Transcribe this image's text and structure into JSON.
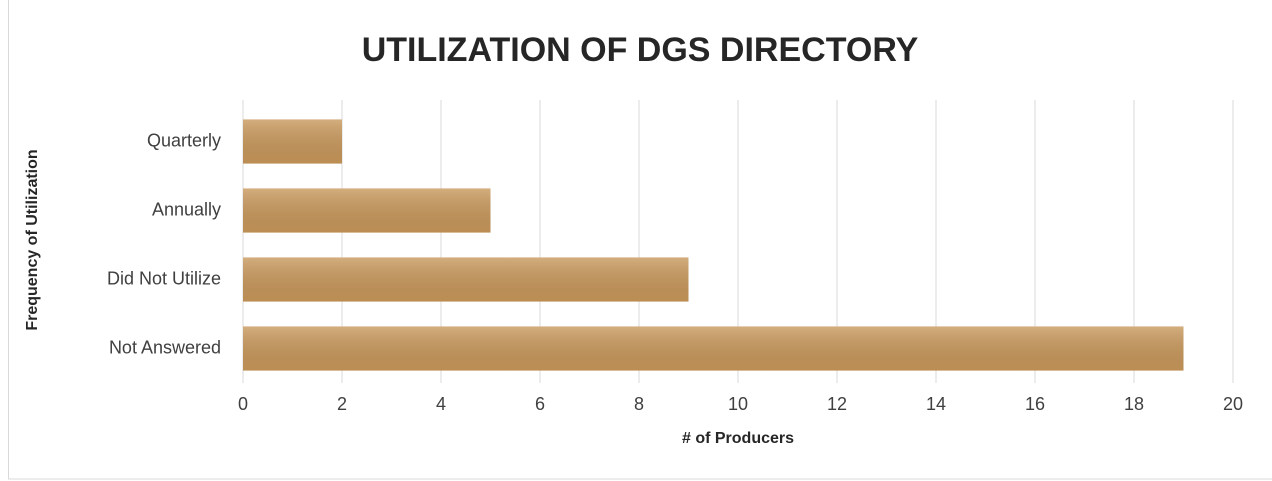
{
  "chart_data": {
    "type": "bar",
    "orientation": "horizontal",
    "title": "UTILIZATION OF DGS DIRECTORY",
    "xlabel": "# of Producers",
    "ylabel": "Frequency of Utilization",
    "categories": [
      "Quarterly",
      "Annually",
      "Did Not Utilize",
      "Not Answered"
    ],
    "values": [
      2,
      5,
      9,
      19
    ],
    "color": "#c8975a",
    "xlim": [
      0,
      20
    ],
    "xticks": [
      0,
      2,
      4,
      6,
      8,
      10,
      12,
      14,
      16,
      18,
      20
    ],
    "grid": true
  }
}
